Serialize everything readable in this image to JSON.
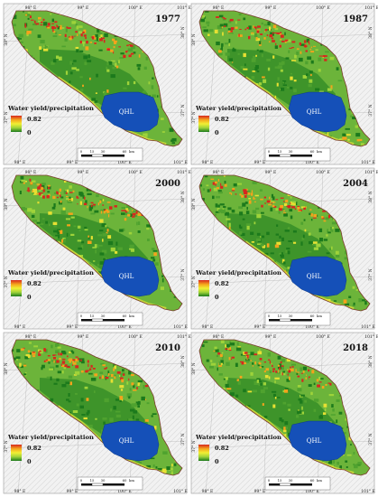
{
  "legend": {
    "title": "Water yield/precipitation",
    "max": "0.82",
    "min": "0",
    "colors": [
      "#d7261e",
      "#f4a31c",
      "#f2ef33",
      "#9ed33a",
      "#1c7a1c"
    ]
  },
  "lake_label": "QHL",
  "lake_color": "#1550b8",
  "longitude_labels": [
    "98° E",
    "99° E",
    "100° E",
    "101° E"
  ],
  "latitude_labels": [
    "38° N",
    "37° N"
  ],
  "scalebar_labels": [
    "0",
    "15",
    "30",
    "60",
    "km"
  ],
  "panels": [
    {
      "year": "1977"
    },
    {
      "year": "1987"
    },
    {
      "year": "2000"
    },
    {
      "year": "2004"
    },
    {
      "year": "2010"
    },
    {
      "year": "2018"
    }
  ]
}
